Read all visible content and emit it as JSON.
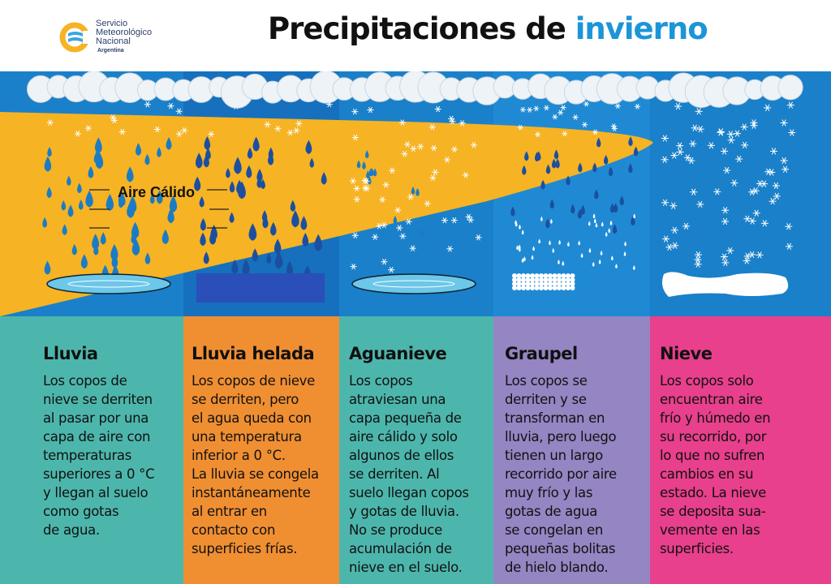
{
  "header": {
    "logo": {
      "line1": "Servicio",
      "line2": "Meteorológico",
      "line3": "Nacional",
      "line4": "Argentina"
    },
    "title_main": "Precipitaciones de ",
    "title_highlight": "invierno"
  },
  "scene": {
    "warm_air_label": "Aire Cálido"
  },
  "columns": [
    {
      "title": "Lluvia",
      "color": "#4db6ac",
      "text": "Los copos de\nnieve se derriten\nal pasar por una\ncapa de aire con\ntemperaturas\nsuperiores a 0 °C\ny llegan al suelo\ncomo gotas\nde agua."
    },
    {
      "title": "Lluvia helada",
      "color": "#f08f32",
      "text": "Los copos de nieve\nse derriten, pero\nel agua queda con\nuna temperatura\ninferior a 0 °C.\nLa lluvia se congela\ninstantáneamente\nal entrar en\ncontacto con\nsuperficies frías."
    },
    {
      "title": "Aguanieve",
      "color": "#4db6ac",
      "text": "Los copos\natraviesan una\ncapa pequeña de\naire cálido y solo\nalgunos de ellos\nse derriten. Al\nsuelo llegan copos\ny gotas de lluvia.\nNo se produce\nacumulación de\nnieve en el suelo."
    },
    {
      "title": "Graupel",
      "color": "#9585c2",
      "text": "Los copos se\nderriten y se\ntransforman en\nlluvia, pero luego\ntienen un largo\nrecorrido por aire\nmuy frío y las\ngotas de agua\nse congelan en\npequeñas bolitas\nde hielo blando."
    },
    {
      "title": "Nieve",
      "color": "#e8408c",
      "text": "Los copos solo\nencuentran aire\nfrío y húmedo en\nsu recorrido, por\nlo que no sufren\ncambios en su\nestado. La nieve\nse deposita sua-\nvemente en las\nsuperficies."
    }
  ],
  "colors": {
    "sky": "#1a80c9",
    "warm": "#f6b324",
    "drop": "#1b7cc4",
    "drop_dark": "#1c4fa0"
  }
}
